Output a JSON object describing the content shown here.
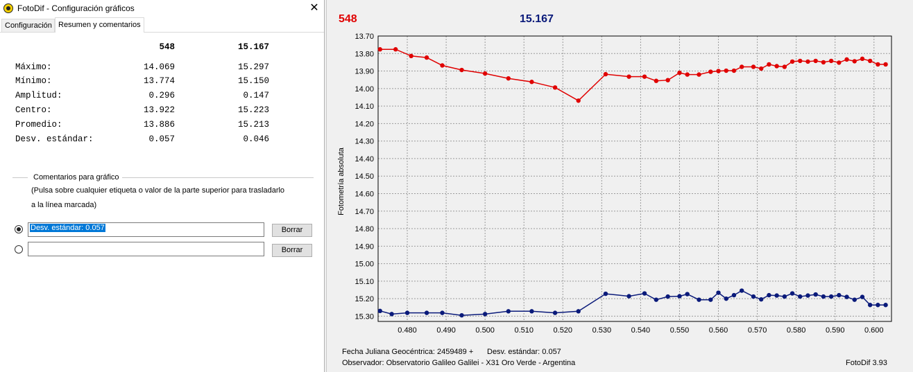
{
  "dialog": {
    "title": "FotoDif - Configuración gráficos",
    "close_glyph": "✕",
    "tabs": [
      {
        "label": "Configuración",
        "active": false
      },
      {
        "label": "Resumen y comentarios",
        "active": true
      }
    ],
    "summary": {
      "headers": [
        "548",
        "15.167"
      ],
      "rows": [
        {
          "label": "Máximo:",
          "a": "14.069",
          "b": "15.297"
        },
        {
          "label": "Mínimo:",
          "a": "13.774",
          "b": "15.150"
        },
        {
          "label": "Amplitud:",
          "a": "0.296",
          "b": "0.147"
        },
        {
          "label": "Centro:",
          "a": "13.922",
          "b": "15.223"
        },
        {
          "label": "Promedio:",
          "a": "13.886",
          "b": "15.213"
        },
        {
          "label": "Desv. estándar:",
          "a": "0.057",
          "b": "0.046"
        }
      ]
    },
    "comments": {
      "legend": "Comentarios para gráfico",
      "hint_line1": "(Pulsa sobre cualquier etiqueta o valor de la parte superior para trasladarlo",
      "hint_line2": "a la línea marcada)",
      "lines": [
        {
          "value": "Desv. estándar: 0.057",
          "selected": true,
          "button": "Borrar"
        },
        {
          "value": "",
          "selected": false,
          "button": "Borrar"
        }
      ]
    },
    "icon": "fotodif-app-icon"
  },
  "chart_data": {
    "type": "line",
    "title": "",
    "header_labels": [
      {
        "text": "548",
        "color": "#e00000"
      },
      {
        "text": "15.167",
        "color": "#0a1a7a"
      }
    ],
    "ylabel": "Fotometría absoluta",
    "y_inverted": true,
    "ylim": [
      13.7,
      15.33
    ],
    "xlim": [
      0.4725,
      0.6045
    ],
    "y_ticks": [
      "13.70",
      "13.80",
      "13.90",
      "14.00",
      "14.10",
      "14.20",
      "14.30",
      "14.40",
      "14.50",
      "14.60",
      "14.70",
      "14.80",
      "14.90",
      "15.00",
      "15.10",
      "15.20",
      "15.30"
    ],
    "x_ticks": [
      "0.480",
      "0.490",
      "0.500",
      "0.510",
      "0.520",
      "0.530",
      "0.540",
      "0.550",
      "0.560",
      "0.570",
      "0.580",
      "0.590",
      "0.600"
    ],
    "grid": true,
    "series": [
      {
        "name": "548",
        "color": "#e00000",
        "x": [
          0.473,
          0.477,
          0.481,
          0.485,
          0.489,
          0.494,
          0.5,
          0.506,
          0.512,
          0.518,
          0.524,
          0.531,
          0.537,
          0.541,
          0.544,
          0.547,
          0.55,
          0.552,
          0.555,
          0.558,
          0.56,
          0.562,
          0.564,
          0.566,
          0.569,
          0.571,
          0.573,
          0.575,
          0.577,
          0.579,
          0.581,
          0.583,
          0.585,
          0.587,
          0.589,
          0.591,
          0.593,
          0.595,
          0.597,
          0.599,
          0.601,
          0.603
        ],
        "y": [
          13.776,
          13.776,
          13.814,
          13.823,
          13.868,
          13.894,
          13.914,
          13.942,
          13.962,
          13.994,
          14.069,
          13.918,
          13.932,
          13.932,
          13.956,
          13.952,
          13.91,
          13.92,
          13.92,
          13.904,
          13.9,
          13.898,
          13.898,
          13.876,
          13.876,
          13.886,
          13.862,
          13.872,
          13.876,
          13.846,
          13.842,
          13.846,
          13.842,
          13.85,
          13.842,
          13.852,
          13.834,
          13.844,
          13.83,
          13.842,
          13.862,
          13.862
        ]
      },
      {
        "name": "15.167",
        "color": "#0a1a7a",
        "x": [
          0.473,
          0.476,
          0.48,
          0.485,
          0.489,
          0.494,
          0.5,
          0.506,
          0.512,
          0.518,
          0.524,
          0.531,
          0.537,
          0.541,
          0.544,
          0.547,
          0.55,
          0.552,
          0.555,
          0.558,
          0.56,
          0.562,
          0.564,
          0.566,
          0.569,
          0.571,
          0.573,
          0.575,
          0.577,
          0.579,
          0.581,
          0.583,
          0.585,
          0.587,
          0.589,
          0.591,
          0.593,
          0.595,
          0.597,
          0.599,
          0.601,
          0.603
        ],
        "y": [
          15.27,
          15.288,
          15.281,
          15.281,
          15.281,
          15.295,
          15.288,
          15.272,
          15.272,
          15.281,
          15.272,
          15.172,
          15.186,
          15.17,
          15.206,
          15.188,
          15.186,
          15.174,
          15.206,
          15.206,
          15.166,
          15.2,
          15.18,
          15.154,
          15.188,
          15.204,
          15.18,
          15.182,
          15.188,
          15.17,
          15.188,
          15.182,
          15.176,
          15.188,
          15.188,
          15.18,
          15.19,
          15.206,
          15.19,
          15.236,
          15.236,
          15.236
        ]
      }
    ],
    "footer": {
      "line1_left": "Fecha Juliana Geocéntrica: 2459489 +",
      "line1_right": "Desv. estándar: 0.057",
      "line2_left": "Observador: Observatorio Galileo Galilei - X31 Oro Verde - Argentina",
      "line2_right": "FotoDif 3.93"
    }
  }
}
